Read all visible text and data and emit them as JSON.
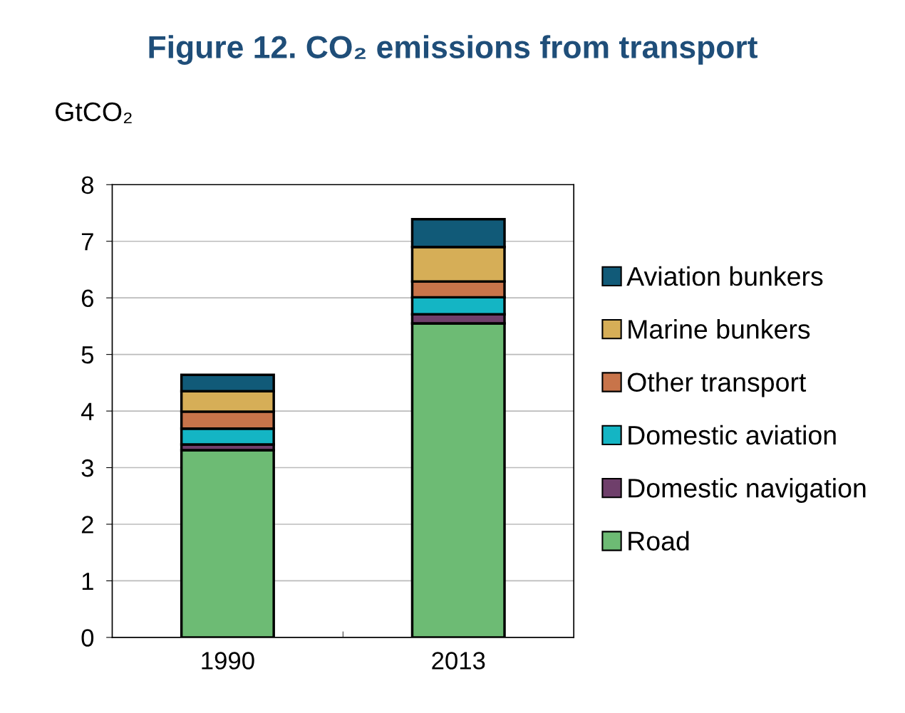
{
  "chart_data": {
    "type": "bar",
    "title": "Figure 12. CO₂ emissions from transport",
    "ylabel": "GtCO₂",
    "categories": [
      "1990",
      "2013"
    ],
    "stacked": true,
    "series": [
      {
        "name": "Road",
        "color": "#6dbb74",
        "values": [
          3.31,
          5.55
        ]
      },
      {
        "name": "Domestic navigation",
        "color": "#6f3f6b",
        "values": [
          0.1,
          0.16
        ]
      },
      {
        "name": "Domestic aviation",
        "color": "#14b5c4",
        "values": [
          0.28,
          0.3
        ]
      },
      {
        "name": "Other transport",
        "color": "#c8744a",
        "values": [
          0.3,
          0.28
        ]
      },
      {
        "name": "Marine bunkers",
        "color": "#d6ae57",
        "values": [
          0.36,
          0.61
        ]
      },
      {
        "name": "Aviation bunkers",
        "color": "#115a78",
        "values": [
          0.29,
          0.49
        ]
      }
    ],
    "ylim": [
      0,
      8
    ],
    "yticks": [
      0,
      1,
      2,
      3,
      4,
      5,
      6,
      7,
      8
    ],
    "grid": "y",
    "legend": "right"
  }
}
